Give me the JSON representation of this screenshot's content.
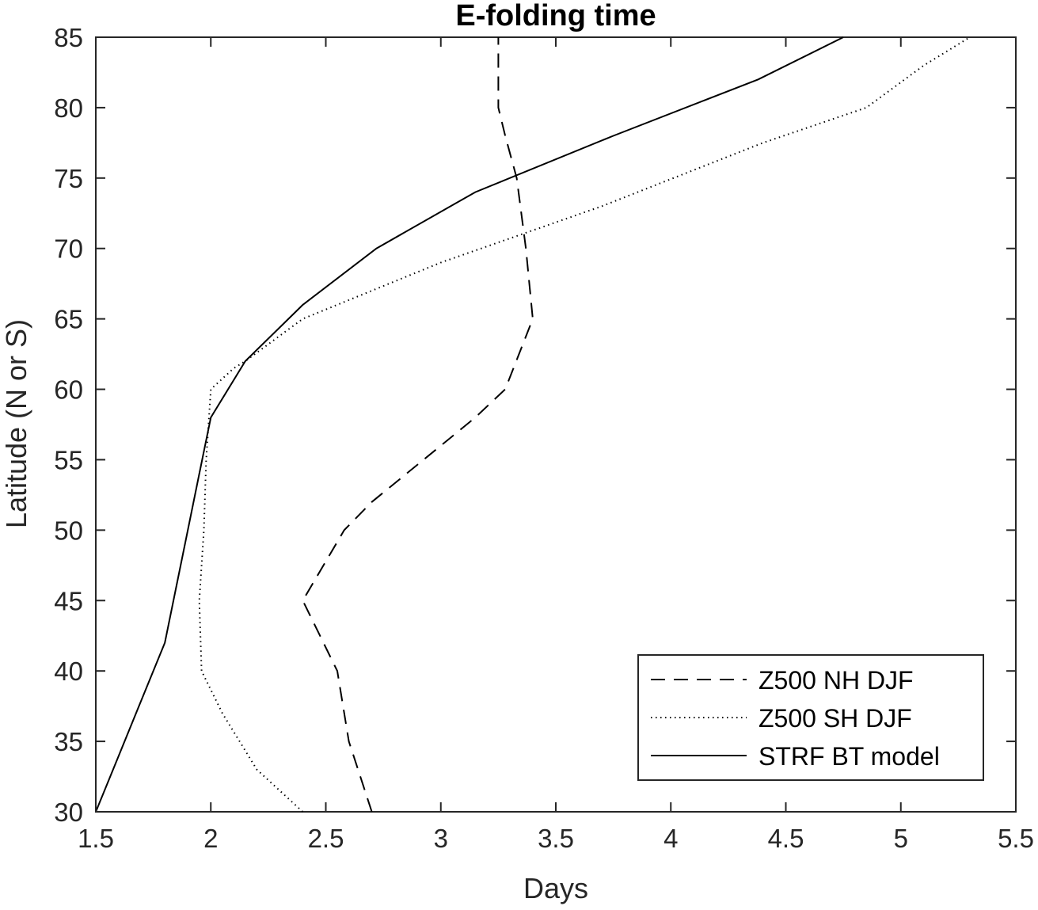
{
  "chart_data": {
    "type": "line",
    "title": "E-folding time",
    "xlabel": "Days",
    "ylabel": "Latitude (N or S)",
    "xlim": [
      1.5,
      5.5
    ],
    "ylim": [
      30,
      85
    ],
    "xticks": [
      1.5,
      2,
      2.5,
      3,
      3.5,
      4,
      4.5,
      5,
      5.5
    ],
    "xtick_labels": [
      "1.5",
      "2",
      "2.5",
      "3",
      "3.5",
      "4",
      "4.5",
      "5",
      "5.5"
    ],
    "yticks": [
      30,
      35,
      40,
      45,
      50,
      55,
      60,
      65,
      70,
      75,
      80,
      85
    ],
    "ytick_labels": [
      "30",
      "35",
      "40",
      "45",
      "50",
      "55",
      "60",
      "65",
      "70",
      "75",
      "80",
      "85"
    ],
    "grid": false,
    "box": true,
    "legend_position": "bottom-right",
    "series": [
      {
        "name": "Z500 NH DJF",
        "style": "dashed",
        "color": "#000000",
        "x": [
          2.7,
          2.6,
          2.55,
          2.4,
          2.58,
          2.7,
          2.85,
          3.0,
          3.15,
          3.28,
          3.4,
          3.37,
          3.33,
          3.28,
          3.25,
          3.25,
          3.25
        ],
        "y": [
          30,
          35,
          40,
          45,
          50,
          52,
          54,
          56,
          58,
          60,
          65,
          70,
          75,
          78,
          80,
          82,
          85
        ]
      },
      {
        "name": "Z500 SH DJF",
        "style": "dotted",
        "color": "#000000",
        "x": [
          2.4,
          2.2,
          2.05,
          1.96,
          1.95,
          1.97,
          1.98,
          2.0,
          2.1,
          2.15,
          2.4,
          3.0,
          3.7,
          4.4,
          4.85,
          5.1,
          5.3
        ],
        "y": [
          30,
          33,
          37,
          40,
          45,
          50,
          55,
          60,
          61.5,
          62,
          65,
          69,
          73,
          77.5,
          80,
          83,
          85
        ]
      },
      {
        "name": "STRF BT model",
        "style": "solid",
        "color": "#000000",
        "x": [
          1.5,
          1.6,
          1.7,
          1.8,
          1.85,
          1.9,
          1.95,
          2.0,
          2.15,
          2.4,
          2.72,
          3.15,
          3.75,
          4.38,
          4.75
        ],
        "y": [
          30,
          34,
          38,
          42,
          46,
          50,
          54,
          58,
          62,
          66,
          70,
          74,
          78,
          82,
          85
        ]
      }
    ]
  }
}
